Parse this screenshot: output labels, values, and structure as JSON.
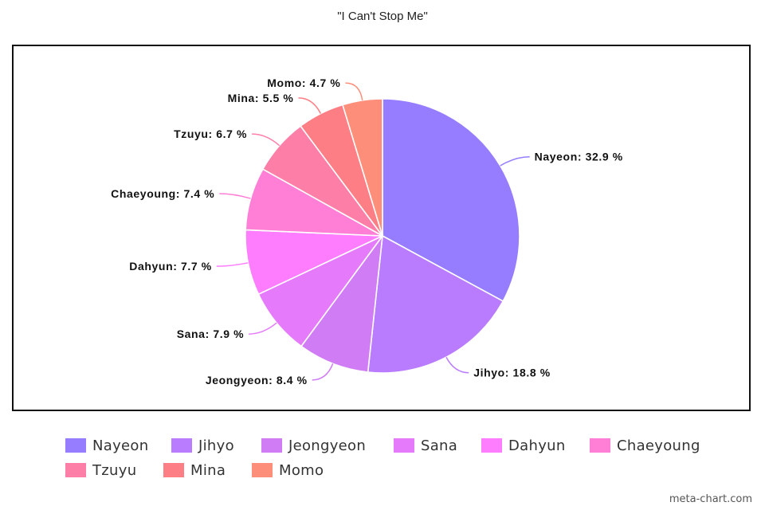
{
  "chart_data": {
    "type": "pie",
    "title": "\"I Can't Stop Me\"",
    "legend_position": "bottom",
    "label_suffix": " %",
    "slices": [
      {
        "name": "Nayeon",
        "value": 32.9,
        "color": "#967cfe"
      },
      {
        "name": "Jihyo",
        "value": 18.8,
        "color": "#b97cfe"
      },
      {
        "name": "Jeongyeon",
        "value": 8.4,
        "color": "#d07cf5"
      },
      {
        "name": "Sana",
        "value": 7.9,
        "color": "#e57bfb"
      },
      {
        "name": "Dahyun",
        "value": 7.7,
        "color": "#fe7dfe"
      },
      {
        "name": "Chaeyoung",
        "value": 7.4,
        "color": "#fe7fd5"
      },
      {
        "name": "Tzuyu",
        "value": 6.7,
        "color": "#fd7fa8"
      },
      {
        "name": "Mina",
        "value": 5.5,
        "color": "#fd7e85"
      },
      {
        "name": "Momo",
        "value": 4.7,
        "color": "#fd8f7a"
      }
    ]
  },
  "watermark": "meta-chart.com"
}
